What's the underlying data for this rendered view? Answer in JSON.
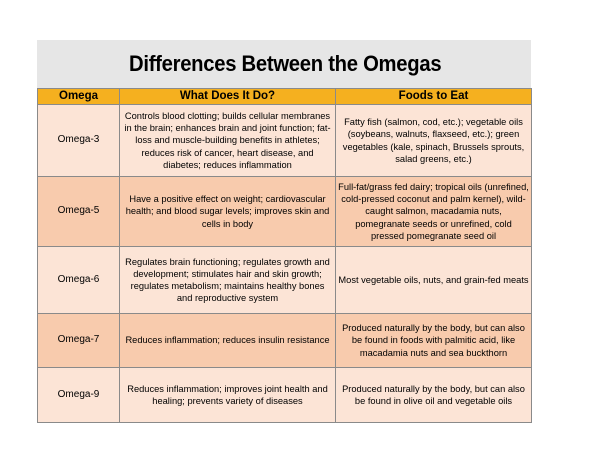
{
  "title": "Differences Between the Omegas",
  "headers": [
    "Omega",
    "What Does It Do?",
    "Foods to Eat"
  ],
  "rows": [
    {
      "omega": "Omega-3",
      "what": "Controls blood clotting; builds cellular membranes in the brain; enhances brain and joint function; fat-loss and muscle-building benefits in athletes; reduces risk of cancer, heart disease, and diabetes; reduces inflammation",
      "foods": "Fatty fish (salmon, cod, etc.); vegetable oils (soybeans, walnuts, flaxseed, etc.); green vegetables (kale, spinach, Brussels sprouts, salad greens, etc.)"
    },
    {
      "omega": "Omega-5",
      "what": "Have a positive effect on weight; cardiovascular health; and blood sugar levels; improves skin and cells in body",
      "foods": "Full-fat/grass fed dairy; tropical oils (unrefined, cold-pressed coconut and palm kernel), wild-caught salmon, macadamia nuts, pomegranate seeds or unrefined, cold pressed pomegranate seed oil"
    },
    {
      "omega": "Omega-6",
      "what": "Regulates brain functioning; regulates growth and development; stimulates hair and skin growth; regulates metabolism; maintains healthy bones and reproductive system",
      "foods": "Most vegetable oils, nuts, and grain-fed meats"
    },
    {
      "omega": "Omega-7",
      "what": "Reduces inflammation; reduces insulin resistance",
      "foods": "Produced naturally by the body, but can also be found in foods with palmitic acid, like macadamia nuts and sea buckthorn"
    },
    {
      "omega": "Omega-9",
      "what": "Reduces inflammation; improves joint health and healing; prevents variety of diseases",
      "foods": "Produced naturally by the body, but can also be found in olive oil and vegetable oils"
    }
  ]
}
